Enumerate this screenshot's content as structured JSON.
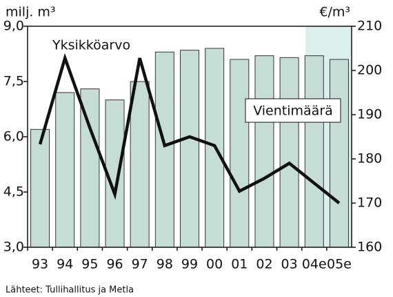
{
  "chart_data": {
    "type": "bar_line",
    "categories": [
      "93",
      "94",
      "95",
      "96",
      "97",
      "98",
      "99",
      "00",
      "01",
      "02",
      "03",
      "04e",
      "05e"
    ],
    "series": [
      {
        "name": "Vientimäärä",
        "type": "bar",
        "color": "#c6ddd6",
        "axis": "y",
        "values": [
          6.2,
          7.2,
          7.3,
          7.0,
          7.5,
          8.3,
          8.35,
          8.4,
          8.1,
          8.2,
          8.15,
          8.2,
          8.1
        ]
      },
      {
        "name": "Yksikköarvo",
        "type": "line",
        "color": "#111111",
        "axis": "y2",
        "values": [
          183.3,
          202.8,
          187,
          172,
          202.8,
          183,
          185,
          183,
          172.7,
          175.6,
          179,
          174.5,
          170
        ]
      }
    ],
    "ylabel": "milj. m³",
    "y2label": "€/m³",
    "ylim": [
      3,
      9
    ],
    "yticks": [
      {
        "value": 3,
        "label": "3,0"
      },
      {
        "value": 4.5,
        "label": "4,5"
      },
      {
        "value": 6,
        "label": "6,0"
      },
      {
        "value": 7.5,
        "label": "7,5"
      },
      {
        "value": 9,
        "label": "9,0"
      }
    ],
    "y2lim": [
      160,
      210
    ],
    "y2ticks": [
      160,
      170,
      180,
      190,
      200,
      210
    ],
    "source": "Lähteet: Tullihallitus ja Metla"
  }
}
